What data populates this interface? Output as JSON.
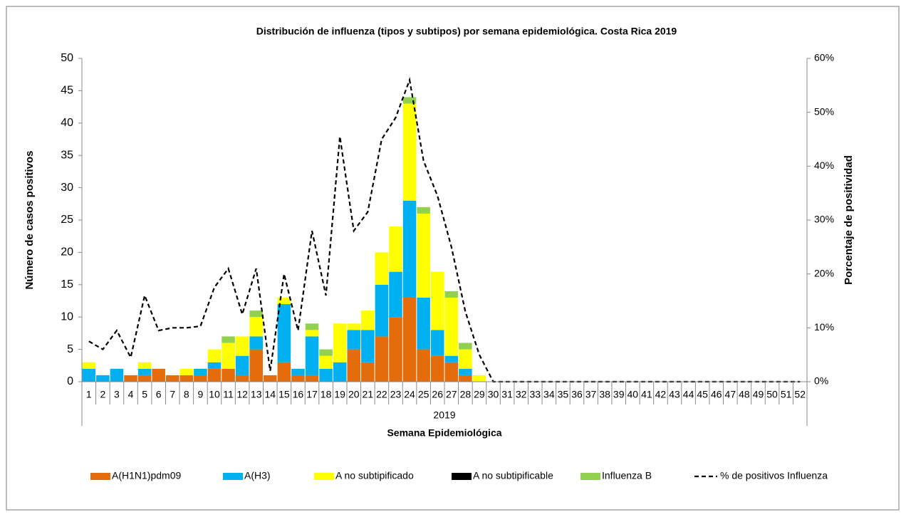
{
  "chart_data": {
    "type": "stacked_bar_line",
    "title": "Distribución de influenza (tipos y subtipos) por semana epidemiológica. Costa Rica 2019",
    "y_label": "Número de casos positivos",
    "y2_label": "Porcentaje de positividad",
    "x_label": "Semana Epidemiológica",
    "x_group_label": "2019",
    "categories": [
      "1",
      "2",
      "3",
      "4",
      "5",
      "6",
      "7",
      "8",
      "9",
      "10",
      "11",
      "12",
      "13",
      "14",
      "15",
      "16",
      "17",
      "18",
      "19",
      "20",
      "21",
      "22",
      "23",
      "24",
      "25",
      "26",
      "27",
      "28",
      "29",
      "30",
      "31",
      "32",
      "33",
      "34",
      "35",
      "36",
      "37",
      "38",
      "39",
      "40",
      "41",
      "42",
      "43",
      "44",
      "45",
      "46",
      "47",
      "48",
      "49",
      "50",
      "51",
      "52"
    ],
    "ylim": [
      0,
      50
    ],
    "yticks": [
      0,
      5,
      10,
      15,
      20,
      25,
      30,
      35,
      40,
      45,
      50
    ],
    "y2lim": [
      0,
      60
    ],
    "y2ticks": [
      {
        "value": 0,
        "label": "0%"
      },
      {
        "value": 10,
        "label": "10%"
      },
      {
        "value": 20,
        "label": "20%"
      },
      {
        "value": 30,
        "label": "30%"
      },
      {
        "value": 40,
        "label": "40%"
      },
      {
        "value": 50,
        "label": "50%"
      },
      {
        "value": 60,
        "label": "60%"
      }
    ],
    "legend": "bottom",
    "series": [
      {
        "name": "A(H1N1)pdm09",
        "type": "bar",
        "color": "#e46c0a",
        "values": [
          0,
          0,
          0,
          1,
          1,
          2,
          1,
          1,
          1,
          2,
          2,
          1,
          5,
          1,
          3,
          1,
          1,
          0,
          0,
          5,
          3,
          7,
          10,
          13,
          5,
          4,
          3,
          1,
          0,
          0,
          0,
          0,
          0,
          0,
          0,
          0,
          0,
          0,
          0,
          0,
          0,
          0,
          0,
          0,
          0,
          0,
          0,
          0,
          0,
          0,
          0,
          0
        ]
      },
      {
        "name": "A(H3)",
        "type": "bar",
        "color": "#00b0f0",
        "values": [
          2,
          1,
          2,
          0,
          1,
          0,
          0,
          0,
          1,
          1,
          0,
          3,
          2,
          0,
          9,
          1,
          6,
          2,
          3,
          3,
          5,
          8,
          7,
          15,
          8,
          4,
          1,
          1,
          0,
          0,
          0,
          0,
          0,
          0,
          0,
          0,
          0,
          0,
          0,
          0,
          0,
          0,
          0,
          0,
          0,
          0,
          0,
          0,
          0,
          0,
          0,
          0
        ]
      },
      {
        "name": "A no subtipificado",
        "type": "bar",
        "color": "#ffff00",
        "values": [
          1,
          0,
          0,
          0,
          1,
          0,
          0,
          1,
          0,
          2,
          4,
          3,
          3,
          0,
          1,
          0,
          1,
          2,
          6,
          1,
          3,
          5,
          7,
          15,
          13,
          9,
          9,
          3,
          1,
          0,
          0,
          0,
          0,
          0,
          0,
          0,
          0,
          0,
          0,
          0,
          0,
          0,
          0,
          0,
          0,
          0,
          0,
          0,
          0,
          0,
          0,
          0
        ]
      },
      {
        "name": "A no subtipificable",
        "type": "bar",
        "color": "#000000",
        "values": [
          0,
          0,
          0,
          0,
          0,
          0,
          0,
          0,
          0,
          0,
          0,
          0,
          0,
          0,
          0,
          0,
          0,
          0,
          0,
          0,
          0,
          0,
          0,
          0,
          0,
          0,
          0,
          0,
          0,
          0,
          0,
          0,
          0,
          0,
          0,
          0,
          0,
          0,
          0,
          0,
          0,
          0,
          0,
          0,
          0,
          0,
          0,
          0,
          0,
          0,
          0,
          0
        ]
      },
      {
        "name": "Influenza B",
        "type": "bar",
        "color": "#92d050",
        "values": [
          0,
          0,
          0,
          0,
          0,
          0,
          0,
          0,
          0,
          0,
          1,
          0,
          1,
          0,
          0,
          0,
          1,
          1,
          0,
          0,
          0,
          0,
          0,
          1,
          1,
          0,
          1,
          1,
          0,
          0,
          0,
          0,
          0,
          0,
          0,
          0,
          0,
          0,
          0,
          0,
          0,
          0,
          0,
          0,
          0,
          0,
          0,
          0,
          0,
          0,
          0,
          0
        ]
      },
      {
        "name": "% de positivos Influenza",
        "type": "line",
        "axis": "y2",
        "color": "#000000",
        "values": [
          7.5,
          6,
          9.5,
          4.5,
          16,
          9.5,
          10,
          10,
          10.3,
          17.5,
          21,
          12.5,
          21,
          2,
          20,
          9.5,
          28,
          16,
          45.5,
          28,
          31.5,
          45,
          49,
          56,
          41,
          34.5,
          25,
          13,
          5,
          0,
          0,
          0,
          0,
          0,
          0,
          0,
          0,
          0,
          0,
          0,
          0,
          0,
          0,
          0,
          0,
          0,
          0,
          0,
          0,
          0,
          0,
          0
        ]
      }
    ]
  }
}
